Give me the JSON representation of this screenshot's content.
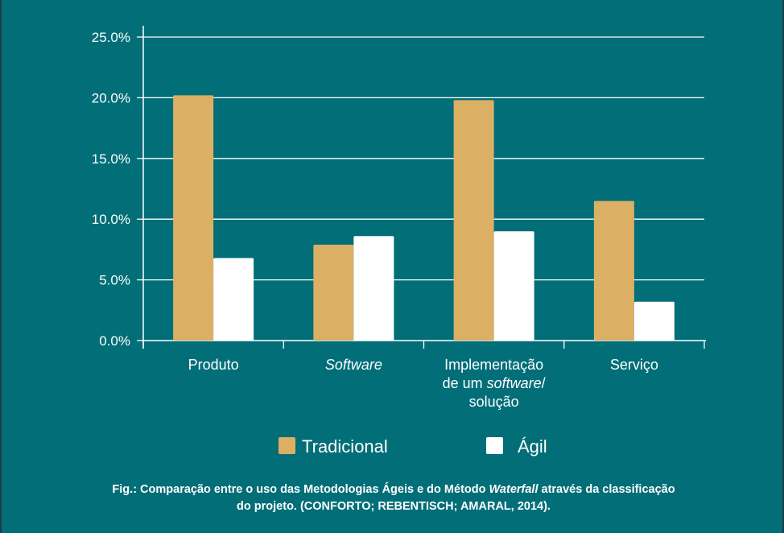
{
  "chart_data": {
    "type": "bar",
    "categories": [
      "Produto",
      "Software",
      "Implementação de um software/ solução",
      "Serviço"
    ],
    "category_lines": [
      [
        [
          {
            "t": "Produto",
            "i": false
          }
        ]
      ],
      [
        [
          {
            "t": "Software",
            "i": true
          }
        ]
      ],
      [
        [
          {
            "t": "Implementação",
            "i": false
          }
        ],
        [
          {
            "t": "de um ",
            "i": false
          },
          {
            "t": "software",
            "i": true
          },
          {
            "t": "/",
            "i": false
          }
        ],
        [
          {
            "t": "solução",
            "i": false
          }
        ]
      ],
      [
        [
          {
            "t": "Serviço",
            "i": false
          }
        ]
      ]
    ],
    "series": [
      {
        "name": "Tradicional",
        "color": "#dbb064",
        "values": [
          20.2,
          7.9,
          19.8,
          11.5
        ]
      },
      {
        "name": "Ágil",
        "color": "#ffffff",
        "values": [
          6.8,
          8.6,
          9.0,
          3.2
        ]
      }
    ],
    "yticks": [
      "0.0%",
      "5.0%",
      "10.0%",
      "15.0%",
      "20.0%",
      "25.0%"
    ],
    "ylim": [
      0,
      25
    ],
    "grid": true,
    "legend_position": "bottom"
  },
  "caption": {
    "prefix": "Fig.: Comparação entre o uso das Metodologias Ágeis e do Método ",
    "italic": "Waterfall",
    "suffix_line1": " através da classificação",
    "line2": "do projeto. (CONFORTO; REBENTISCH; AMARAL, 2014)."
  }
}
